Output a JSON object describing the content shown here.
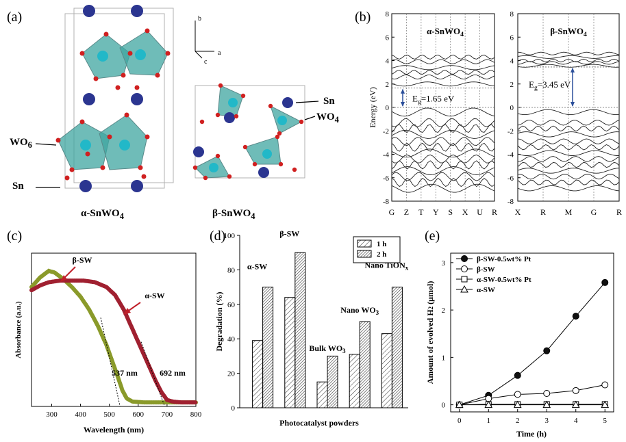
{
  "panel_labels": {
    "a": "(a)",
    "b": "(b)",
    "c": "(c)",
    "d": "(d)",
    "e": "(e)"
  },
  "panel_a": {
    "alpha_caption": "α-SnWO",
    "alpha_sub": "4",
    "beta_caption": "β-SnWO",
    "beta_sub": "4",
    "label_wo6": "WO",
    "label_wo6_sub": "6",
    "label_sn_left": "Sn",
    "label_sn_right": "Sn",
    "label_wo4": "WO",
    "label_wo4_sub": "4",
    "axis_b": "b",
    "axis_a": "a",
    "axis_c": "c",
    "colors": {
      "sn_atom": "#2b3590",
      "w_atom": "#22b8c8",
      "o_atom": "#d02020",
      "polyhedron": "#3fa6a0",
      "cell": "#b0b0b0"
    }
  },
  "chart_data": [
    {
      "id": "b",
      "type": "line",
      "ylabel": "Energy (eV)",
      "ylim": [
        -8,
        8
      ],
      "yticks": [
        "8",
        "6",
        "4",
        "2",
        "0",
        "-2",
        "-4",
        "-6",
        "-8"
      ],
      "left": {
        "title": "α-SnWO",
        "title_sub": "4",
        "xticks": [
          "G",
          "Z",
          "T",
          "Y",
          "S",
          "X",
          "U",
          "R"
        ],
        "gap_label": "E",
        "gap_sub": "g",
        "gap_value": "=1.65 eV",
        "vbm": 0,
        "cbm": 1.65
      },
      "right": {
        "title": "β-SnWO",
        "title_sub": "4",
        "xticks": [
          "X",
          "R",
          "M",
          "G",
          "R"
        ],
        "gap_label": "E",
        "gap_sub": "g",
        "gap_value": "=3.45 eV",
        "vbm": 0,
        "cbm": 3.45
      }
    },
    {
      "id": "c",
      "type": "line",
      "xlabel": "Wavelength (nm)",
      "ylabel": "Absorbance (a.u.)",
      "xlim": [
        230,
        800
      ],
      "xticks": [
        300,
        400,
        500,
        600,
        700,
        800
      ],
      "series": [
        {
          "name": "β-SW",
          "color": "#8a9a2a",
          "x": [
            230,
            260,
            290,
            310,
            340,
            370,
            400,
            430,
            460,
            490,
            510,
            530,
            545,
            560,
            580,
            620,
            660,
            700,
            750,
            800
          ],
          "y": [
            0.74,
            0.8,
            0.84,
            0.83,
            0.79,
            0.74,
            0.68,
            0.6,
            0.5,
            0.38,
            0.28,
            0.18,
            0.1,
            0.05,
            0.03,
            0.025,
            0.025,
            0.025,
            0.025,
            0.025
          ]
        },
        {
          "name": "α-SW",
          "color": "#a02030",
          "x": [
            230,
            260,
            290,
            330,
            370,
            410,
            450,
            490,
            520,
            550,
            580,
            610,
            640,
            660,
            680,
            700,
            720,
            750,
            800
          ],
          "y": [
            0.72,
            0.75,
            0.77,
            0.78,
            0.78,
            0.78,
            0.77,
            0.74,
            0.69,
            0.6,
            0.48,
            0.36,
            0.24,
            0.16,
            0.09,
            0.04,
            0.03,
            0.025,
            0.025
          ]
        }
      ],
      "annotations": [
        "β-SW",
        "α-SW",
        "537 nm",
        "692 nm"
      ],
      "edges": [
        537,
        692
      ]
    },
    {
      "id": "d",
      "type": "bar",
      "xlabel": "Photocatalyst powders",
      "ylabel": "Degradation (%)",
      "ylim": [
        0,
        100
      ],
      "yticks": [
        0,
        20,
        40,
        60,
        80,
        100
      ],
      "categories": [
        "α-SW",
        "β-SW",
        "Bulk WO3",
        "Nano WO3",
        "Nano TiONx"
      ],
      "category_labels": [
        {
          "text": "α-SW",
          "sub": ""
        },
        {
          "text": "β-SW",
          "sub": ""
        },
        {
          "text": "Bulk WO",
          "sub": "3"
        },
        {
          "text": "Nano WO",
          "sub": "3"
        },
        {
          "text": "Nano TiON",
          "sub": "x"
        }
      ],
      "series": [
        {
          "name": "1 h",
          "values": [
            39,
            64,
            15,
            31,
            43
          ]
        },
        {
          "name": "2 h",
          "values": [
            70,
            90,
            30,
            50,
            70
          ]
        }
      ]
    },
    {
      "id": "e",
      "type": "line",
      "xlabel": "Time (h)",
      "ylabel": "Amount of evolved H",
      "ylabel_sub": "2",
      "ylabel_unit": " (μmol)",
      "xlim": [
        -0.3,
        5.3
      ],
      "ylim": [
        -0.15,
        3.2
      ],
      "xticks": [
        0,
        1,
        2,
        3,
        4,
        5
      ],
      "yticks": [
        0,
        1,
        2,
        3
      ],
      "series": [
        {
          "name": "β-SW-0.5wt% Pt",
          "marker": "filled-circle",
          "x": [
            0,
            1,
            2,
            3,
            4,
            5
          ],
          "y": [
            0,
            0.2,
            0.62,
            1.14,
            1.87,
            2.58
          ]
        },
        {
          "name": "β-SW",
          "marker": "open-circle",
          "x": [
            0,
            1,
            2,
            3,
            4,
            5
          ],
          "y": [
            0,
            0.13,
            0.22,
            0.24,
            0.3,
            0.42
          ]
        },
        {
          "name": "α-SW-0.5wt% Pt",
          "marker": "open-square",
          "x": [
            0,
            1,
            2,
            3,
            4,
            5
          ],
          "y": [
            0,
            0.01,
            0.01,
            0.01,
            0.01,
            0.01
          ]
        },
        {
          "name": "α-SW",
          "marker": "open-triangle",
          "x": [
            0,
            1,
            2,
            3,
            4,
            5
          ],
          "y": [
            0,
            0.0,
            0.0,
            0.0,
            0.0,
            0.0
          ]
        }
      ]
    }
  ]
}
